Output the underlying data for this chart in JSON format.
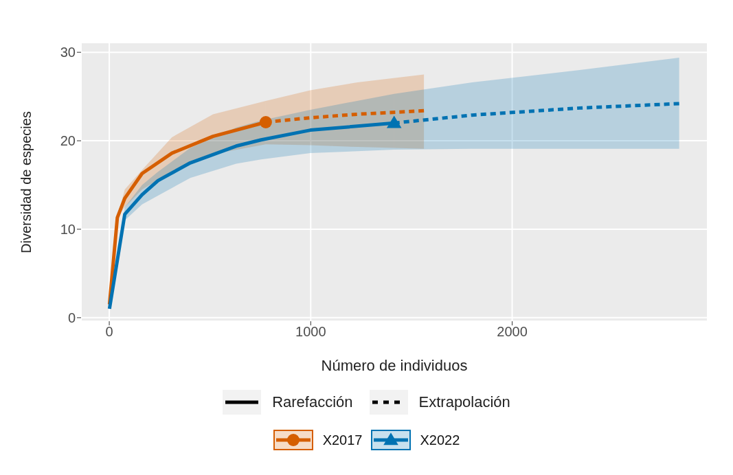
{
  "chart_data": {
    "type": "line",
    "xlabel": "Número de individuos",
    "ylabel": "Diversidad de especies",
    "xlim": [
      -140,
      2970
    ],
    "ylim": [
      -0.4,
      31.1
    ],
    "xticks": [
      0,
      1000,
      2000
    ],
    "yticks": [
      0,
      10,
      20,
      30
    ],
    "grid": true,
    "legend": "bottom",
    "series": [
      {
        "color": "#d55e00",
        "line_style": "solid",
        "x": [
          1,
          40,
          77,
          163,
          311,
          515,
          777
        ],
        "values": [
          1.5,
          11.3,
          13.5,
          16.3,
          18.6,
          20.5,
          22.1
        ],
        "lower": [
          1.5,
          11.3,
          12.5,
          14.5,
          16.5,
          18.5,
          19.6
        ],
        "upper": [
          1.5,
          11.3,
          14.5,
          16.7,
          20.4,
          23,
          24.5
        ]
      },
      {
        "color": "#d55e00",
        "line_style": "dashed",
        "x": [
          777,
          998,
          1232,
          1562
        ],
        "values": [
          22.1,
          22.6,
          23,
          23.4
        ],
        "lower": [
          19.6,
          19.5,
          19.3,
          19.1
        ],
        "upper": [
          24.5,
          25.7,
          26.6,
          27.5
        ]
      },
      {
        "color": "#0072b2",
        "line_style": "solid",
        "x": [
          1,
          77,
          163,
          242,
          402,
          630,
          754,
          998,
          1414
        ],
        "values": [
          1,
          11.7,
          13.9,
          15.5,
          17.5,
          19.4,
          20.1,
          21.2,
          22
        ],
        "lower": [
          1,
          11,
          12.8,
          13.8,
          15.8,
          17.4,
          17.9,
          18.6,
          19
        ],
        "upper": [
          1,
          12.5,
          15,
          16.5,
          19.2,
          21.5,
          22.3,
          23.5,
          25.3
        ]
      },
      {
        "color": "#0072b2",
        "line_style": "dashed",
        "x": [
          1414,
          1801,
          2335,
          2829
        ],
        "values": [
          22,
          22.9,
          23.7,
          24.2
        ],
        "lower": [
          19,
          19.1,
          19.1,
          19.1
        ],
        "upper": [
          25.3,
          26.6,
          28,
          29.4
        ]
      },
      {
        "name": "X2017",
        "type": "scatter",
        "color": "#d55e00",
        "marker": "circle",
        "x": [
          777
        ],
        "values": [
          22.1
        ]
      },
      {
        "name": "X2022",
        "type": "scatter",
        "color": "#0072b2",
        "marker": "triangle",
        "x": [
          1414
        ],
        "values": [
          22
        ]
      },
      {
        "name": "Rarefacción",
        "color": "#000000",
        "line_style": "solid"
      },
      {
        "name": "Extrapolación",
        "color": "#000000",
        "line_style": "dashed"
      }
    ]
  }
}
